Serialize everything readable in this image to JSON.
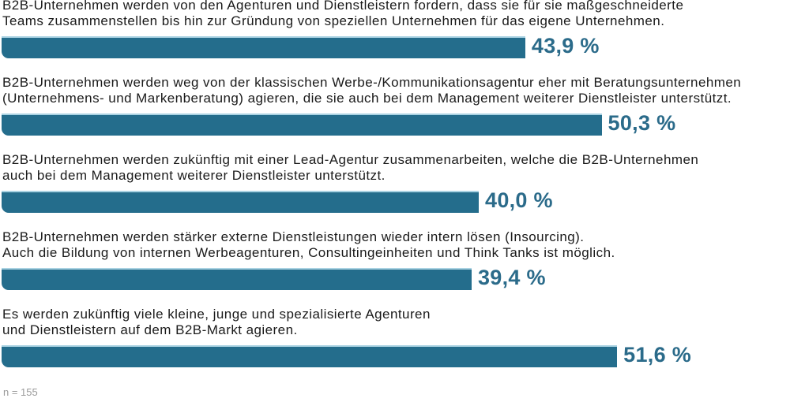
{
  "chart_data": {
    "type": "bar",
    "orientation": "horizontal",
    "unit": "%",
    "xlim": [
      0,
      66
    ],
    "grid": false,
    "color": "#246d8c",
    "label_color": "#2b6b8a",
    "categories": [
      "B2B-Unternehmen werden von den Agenturen und Dienstleistern fordern, dass sie für sie maßgeschneiderte\nTeams zusammenstellen bis hin zur Gründung von speziellen Unternehmen für das eigene Unternehmen.",
      "B2B-Unternehmen werden weg von der klassischen Werbe-/Kommunikationsagentur eher mit Beratungsunternehmen\n(Unternehmens- und Markenberatung) agieren, die sie auch bei dem Management weiterer Dienstleister unterstützt.",
      "B2B-Unternehmen werden zukünftig mit einer Lead-Agentur zusammenarbeiten, welche die B2B-Unternehmen\nauch bei dem Management weiterer Dienstleister unterstützt.",
      "B2B-Unternehmen werden stärker externe Dienstleistungen wieder intern lösen (Insourcing).\nAuch die Bildung von internen Werbeagenturen, Consultingeinheiten und Think Tanks ist möglich.",
      "Es werden zukünftig viele kleine, junge und spezialisierte Agenturen\nund Dienstleistern auf dem B2B-Markt agieren."
    ],
    "values": [
      43.9,
      50.3,
      40.0,
      39.4,
      51.6
    ],
    "value_labels": [
      "43,9 %",
      "50,3 %",
      "40,0 %",
      "39,4 %",
      "51,6 %"
    ],
    "note": "n = 155"
  }
}
